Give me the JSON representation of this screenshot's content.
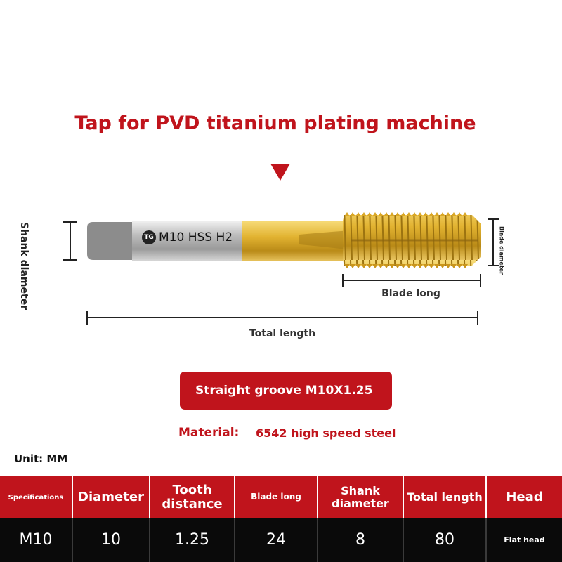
{
  "title": "Tap for PVD titanium plating machine",
  "tool_marking": "M10 HSS H2",
  "logo_text": "TG",
  "dimension_labels": {
    "shank_diameter": "Shank diameter",
    "blade_diameter": "Blade diameter",
    "blade_long": "Blade long",
    "total_length": "Total length"
  },
  "groove_badge": "Straight groove M10X1.25",
  "material": {
    "label": "Material:",
    "value": "6542 high speed steel"
  },
  "unit": "Unit: MM",
  "table": {
    "headers": [
      "Specifications",
      "Diameter",
      "Tooth distance",
      "Blade long",
      "Shank diameter",
      "Total length",
      "Head"
    ],
    "values": [
      "M10",
      "10",
      "1.25",
      "24",
      "8",
      "80",
      "Flat head"
    ]
  },
  "colors": {
    "accent_red": "#c0141c",
    "table_body": "#0a0a0a",
    "titanium_gold": "#e2b331",
    "shank_silver": "#c8c8c8"
  },
  "icons": [
    "down-arrow-icon",
    "tg-logo-icon"
  ]
}
